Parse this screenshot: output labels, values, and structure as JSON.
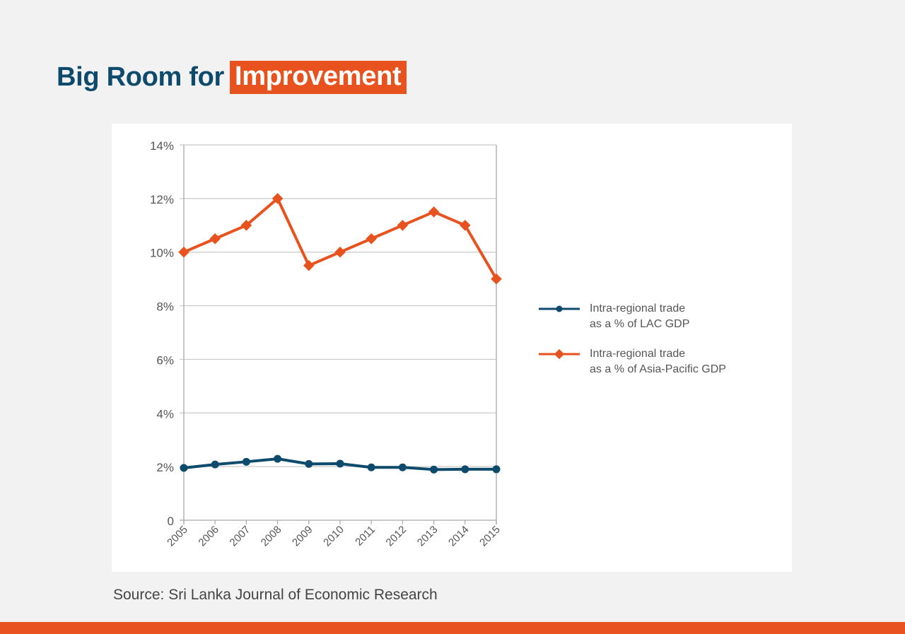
{
  "header": {
    "title_plain": "Big Room for",
    "title_highlight": "Improvement"
  },
  "source": "Source: Sri Lanka Journal of Economic Research",
  "colors": {
    "brand_orange": "#e8521e",
    "brand_navy": "#0d4a6b",
    "background": "#f2f2f2"
  },
  "chart_data": {
    "type": "line",
    "title": "Big Room for Improvement",
    "xlabel": "",
    "ylabel": "",
    "x": [
      "2005",
      "2006",
      "2007",
      "2008",
      "2009",
      "2010",
      "2011",
      "2012",
      "2013",
      "2014",
      "2015"
    ],
    "ylim": [
      0,
      14
    ],
    "yticks": [
      0,
      2,
      4,
      6,
      8,
      10,
      12,
      14
    ],
    "ytick_labels": [
      "0",
      "2%",
      "4%",
      "6%",
      "8%",
      "10%",
      "12%",
      "14%"
    ],
    "grid": true,
    "legend_position": "right",
    "series": [
      {
        "name": "Intra-regional trade as a % of LAC GDP",
        "legend_line1": "Intra-regional trade",
        "legend_line2": "as a % of LAC GDP",
        "color": "#0d4a6b",
        "marker": "circle",
        "values": [
          1.95,
          2.08,
          2.18,
          2.29,
          2.1,
          2.11,
          1.97,
          1.97,
          1.89,
          1.9,
          1.9
        ]
      },
      {
        "name": "Intra-regional trade as a % of Asia-Pacific GDP",
        "legend_line1": "Intra-regional trade",
        "legend_line2": "as a % of Asia-Pacific GDP",
        "color": "#e8521e",
        "marker": "diamond",
        "values": [
          10.0,
          10.5,
          11.0,
          12.0,
          9.5,
          10.0,
          10.5,
          11.0,
          11.5,
          11.0,
          9.0
        ]
      }
    ]
  }
}
